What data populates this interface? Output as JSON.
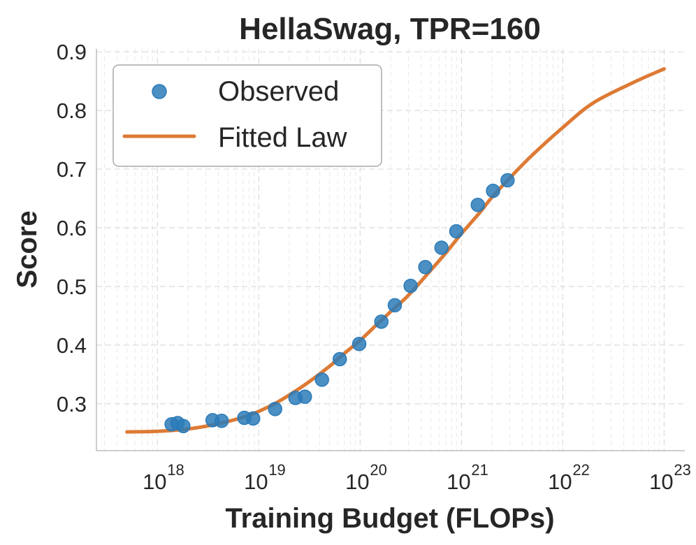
{
  "chart_data": {
    "type": "scatter",
    "title": "HellaSwag, TPR=160",
    "xlabel": "Training Budget (FLOPs)",
    "ylabel": "Score",
    "xscale": "log",
    "xlim": [
      2.5e+17,
      1.6e+23
    ],
    "ylim": [
      0.22,
      0.905
    ],
    "yticks": [
      0.3,
      0.4,
      0.5,
      0.6,
      0.7,
      0.8,
      0.9
    ],
    "ytick_labels": [
      "0.3",
      "0.4",
      "0.5",
      "0.6",
      "0.7",
      "0.8",
      "0.9"
    ],
    "xticks": [
      {
        "value": 1e+18,
        "base": "10",
        "exp": "18"
      },
      {
        "value": 1e+19,
        "base": "10",
        "exp": "19"
      },
      {
        "value": 1e+20,
        "base": "10",
        "exp": "20"
      },
      {
        "value": 1e+21,
        "base": "10",
        "exp": "21"
      },
      {
        "value": 1e+22,
        "base": "10",
        "exp": "22"
      },
      {
        "value": 1e+23,
        "base": "10",
        "exp": "23"
      }
    ],
    "grid": true,
    "legend": {
      "position": "top-left",
      "entries": [
        {
          "label": "Observed",
          "kind": "marker"
        },
        {
          "label": "Fitted Law",
          "kind": "line"
        }
      ]
    },
    "colors": {
      "observed": "#2b7bb9",
      "fitted": "#dd7a34"
    },
    "series": [
      {
        "name": "Observed",
        "kind": "scatter",
        "x": [
          1.38e+18,
          1.58e+18,
          1.8e+18,
          3.5e+18,
          4.3e+18,
          7.2e+18,
          8.8e+18,
          1.45e+19,
          2.3e+19,
          2.85e+19,
          4.2e+19,
          6.3e+19,
          9.8e+19,
          1.62e+20,
          2.2e+20,
          3.15e+20,
          4.4e+20,
          6.35e+20,
          8.9e+20,
          1.45e+21,
          2.05e+21,
          2.85e+21
        ],
        "y": [
          0.265,
          0.267,
          0.262,
          0.272,
          0.271,
          0.276,
          0.275,
          0.291,
          0.31,
          0.312,
          0.341,
          0.376,
          0.402,
          0.44,
          0.468,
          0.501,
          0.533,
          0.566,
          0.594,
          0.639,
          0.663,
          0.681
        ]
      },
      {
        "name": "Fitted Law",
        "kind": "line",
        "x": [
          5e+17,
          1e+18,
          2e+18,
          4e+18,
          7e+18,
          1e+19,
          1.5e+19,
          2e+19,
          3e+19,
          5e+19,
          7e+19,
          1e+20,
          1.5e+20,
          2e+20,
          3e+20,
          5e+20,
          7e+20,
          1e+21,
          1.5e+21,
          2e+21,
          3e+21,
          5e+21,
          1e+22,
          2e+22,
          5e+22,
          1e+23
        ],
        "y": [
          0.252,
          0.253,
          0.257,
          0.266,
          0.277,
          0.287,
          0.302,
          0.315,
          0.335,
          0.364,
          0.386,
          0.408,
          0.437,
          0.457,
          0.485,
          0.528,
          0.557,
          0.59,
          0.625,
          0.652,
          0.685,
          0.724,
          0.771,
          0.813,
          0.848,
          0.871
        ]
      }
    ]
  }
}
